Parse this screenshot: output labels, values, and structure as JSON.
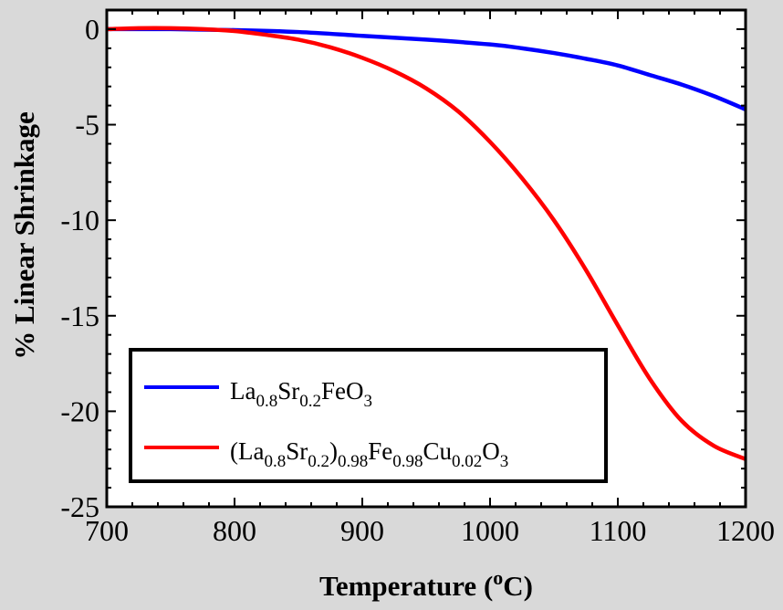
{
  "chart_data": {
    "type": "line",
    "xlabel": "Temperature (",
    "xlabel_sup": "o",
    "xlabel_unit": "C)",
    "ylabel": "% Linear Shrinkage",
    "xlim": [
      700,
      1200
    ],
    "ylim": [
      -25,
      1
    ],
    "xticks": [
      700,
      800,
      900,
      1000,
      1100,
      1200
    ],
    "yticks": [
      0,
      -5,
      -10,
      -15,
      -20,
      -25
    ],
    "grid": false,
    "legend_position": "bottom-left",
    "series": [
      {
        "name_parts": [
          [
            "La",
            false
          ],
          [
            "0.8",
            true
          ],
          [
            "Sr",
            false
          ],
          [
            "0.2",
            true
          ],
          [
            "FeO",
            false
          ],
          [
            "3",
            true
          ]
        ],
        "color": "#0000ff",
        "x": [
          700,
          750,
          800,
          850,
          900,
          950,
          1000,
          1025,
          1050,
          1075,
          1100,
          1125,
          1150,
          1175,
          1200
        ],
        "y": [
          0,
          0,
          -0.05,
          -0.15,
          -0.35,
          -0.55,
          -0.8,
          -1.0,
          -1.25,
          -1.55,
          -1.9,
          -2.4,
          -2.9,
          -3.5,
          -4.2
        ]
      },
      {
        "name_parts": [
          [
            "(La",
            false
          ],
          [
            "0.8",
            true
          ],
          [
            "Sr",
            false
          ],
          [
            "0.2",
            true
          ],
          [
            ")",
            false
          ],
          [
            "0.98",
            true
          ],
          [
            "Fe",
            false
          ],
          [
            "0.98",
            true
          ],
          [
            "Cu",
            false
          ],
          [
            "0.02",
            true
          ],
          [
            "O",
            false
          ],
          [
            "3",
            true
          ]
        ],
        "color": "#ff0000",
        "x": [
          700,
          725,
          750,
          775,
          800,
          825,
          850,
          875,
          900,
          925,
          950,
          975,
          1000,
          1025,
          1050,
          1075,
          1100,
          1125,
          1150,
          1175,
          1200
        ],
        "y": [
          0,
          0.05,
          0.05,
          0,
          -0.1,
          -0.3,
          -0.55,
          -0.95,
          -1.5,
          -2.2,
          -3.1,
          -4.3,
          -5.9,
          -7.8,
          -10.0,
          -12.6,
          -15.5,
          -18.3,
          -20.5,
          -21.8,
          -22.5
        ]
      }
    ]
  }
}
